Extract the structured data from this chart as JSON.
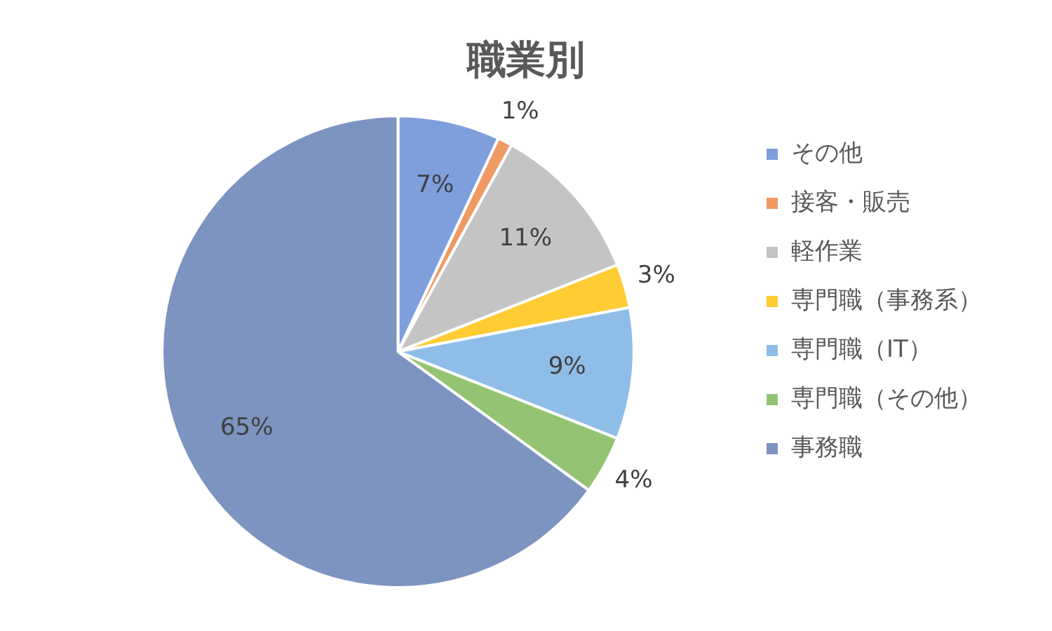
{
  "chart_data": {
    "type": "pie",
    "title": "職業別",
    "categories": [
      "その他",
      "接客・販売",
      "軽作業",
      "専門職（事務系）",
      "専門職（IT）",
      "専門職（その他）",
      "事務職"
    ],
    "values": [
      7,
      1,
      11,
      3,
      9,
      4,
      65
    ],
    "value_labels": [
      "7%",
      "1%",
      "11%",
      "3%",
      "9%",
      "4%",
      "65%"
    ],
    "colors": [
      "#7f9fdc",
      "#ef9a63",
      "#c4c4c4",
      "#ffcc33",
      "#8ebde8",
      "#94c473",
      "#7d93c0"
    ],
    "legend": "right"
  }
}
